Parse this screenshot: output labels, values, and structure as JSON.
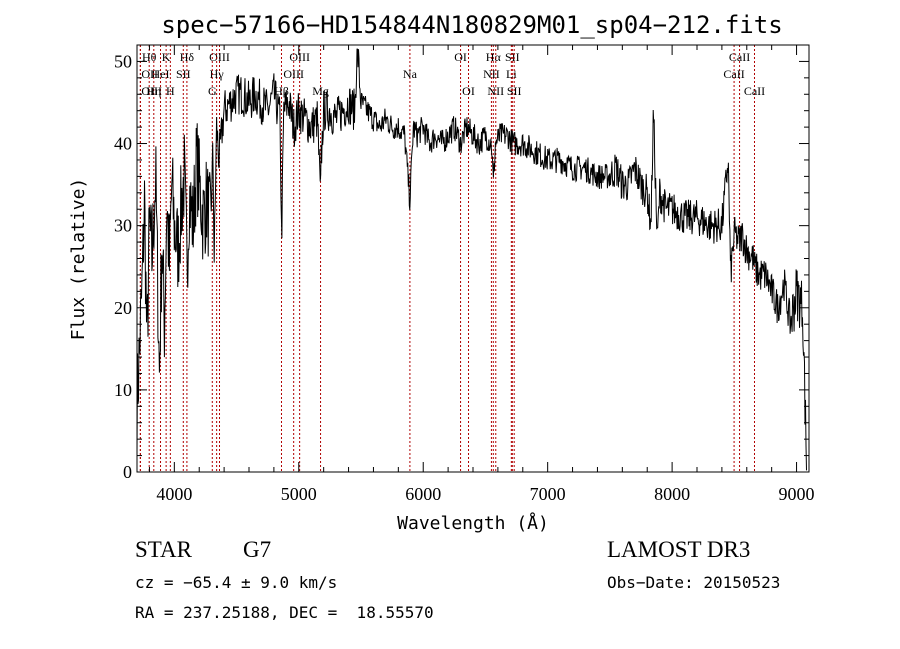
{
  "chart_data": {
    "type": "line",
    "title": "spec−57166−HD154844N180829M01_sp04−212.fits",
    "xlabel": "Wavelength (Å)",
    "ylabel": "Flux (relative)",
    "xlim": [
      3700,
      9100
    ],
    "ylim": [
      0,
      52
    ],
    "xticks": [
      4000,
      5000,
      6000,
      7000,
      8000,
      9000
    ],
    "yticks": [
      0,
      10,
      20,
      30,
      40,
      50
    ],
    "grid": false,
    "series": [
      {
        "name": "flux",
        "x": [
          3700,
          3740,
          3760,
          3780,
          3800,
          3820,
          3850,
          3880,
          3900,
          3920,
          3940,
          3960,
          3980,
          4000,
          4030,
          4060,
          4080,
          4101,
          4120,
          4150,
          4180,
          4200,
          4230,
          4260,
          4290,
          4310,
          4320,
          4340,
          4360,
          4400,
          4450,
          4500,
          4550,
          4600,
          4650,
          4700,
          4750,
          4800,
          4850,
          4861,
          4880,
          4920,
          4960,
          5000,
          5050,
          5100,
          5150,
          5175,
          5180,
          5200,
          5250,
          5300,
          5350,
          5400,
          5450,
          5470,
          5500,
          5550,
          5600,
          5650,
          5700,
          5750,
          5800,
          5850,
          5893,
          5920,
          5950,
          6000,
          6050,
          6100,
          6150,
          6200,
          6250,
          6300,
          6350,
          6400,
          6450,
          6500,
          6550,
          6563,
          6580,
          6620,
          6680,
          6720,
          6800,
          6900,
          7000,
          7100,
          7200,
          7300,
          7400,
          7500,
          7550,
          7600,
          7650,
          7700,
          7750,
          7800,
          7830,
          7850,
          7880,
          7900,
          7950,
          8000,
          8100,
          8200,
          8300,
          8400,
          8450,
          8470,
          8500,
          8542,
          8560,
          8600,
          8650,
          8662,
          8700,
          8750,
          8800,
          8850,
          8900,
          8950,
          9000,
          9050,
          9080
        ],
        "y": [
          8,
          22,
          33,
          15,
          30,
          26,
          36,
          12,
          28,
          18,
          33,
          25,
          35,
          30,
          27,
          33,
          36,
          25,
          34,
          30,
          38,
          35,
          31,
          33,
          30,
          39,
          26,
          42,
          38,
          44,
          45,
          46,
          46,
          45,
          46,
          45,
          44,
          46,
          43,
          28,
          44,
          45,
          42,
          44,
          43,
          42,
          43,
          33,
          38,
          44,
          44,
          43,
          44,
          45,
          44,
          52,
          45,
          44,
          43,
          42,
          43,
          42,
          42,
          41,
          33,
          42,
          41,
          42,
          40,
          41,
          40,
          41,
          42,
          40,
          42,
          41,
          40,
          41,
          40,
          35,
          40,
          41,
          41,
          40,
          40,
          39,
          38,
          38,
          37,
          37,
          36,
          36,
          37,
          35,
          35,
          37,
          35,
          34,
          30,
          44,
          28,
          34,
          32,
          32,
          31,
          31,
          30,
          30,
          38,
          24,
          29,
          28,
          29,
          27,
          26,
          25,
          24,
          24,
          22,
          20,
          23,
          18,
          22,
          20,
          1
        ]
      }
    ],
    "line_markers": [
      {
        "label": "Hθ",
        "wavelength": 3798,
        "row": 1,
        "align": "middle"
      },
      {
        "label": "K",
        "wavelength": 3934,
        "row": 1,
        "align": "middle"
      },
      {
        "label": "Hδ",
        "wavelength": 4101,
        "row": 1,
        "align": "middle"
      },
      {
        "label": "OIII",
        "wavelength": 4363,
        "row": 1,
        "align": "middle"
      },
      {
        "label": "OIII",
        "wavelength": 5007,
        "row": 1,
        "align": "middle"
      },
      {
        "label": "OI",
        "wavelength": 6300,
        "row": 1,
        "align": "middle"
      },
      {
        "label": "Hα",
        "wavelength": 6563,
        "row": 1,
        "align": "middle"
      },
      {
        "label": "SII",
        "wavelength": 6716,
        "row": 1,
        "align": "middle"
      },
      {
        "label": "CaII",
        "wavelength": 8542,
        "row": 1,
        "align": "middle"
      },
      {
        "label": "OII",
        "wavelength": 3727,
        "row": 2,
        "align": "start"
      },
      {
        "label": "HeI",
        "wavelength": 3889,
        "row": 2,
        "align": "middle"
      },
      {
        "label": "SII",
        "wavelength": 4072,
        "row": 2,
        "align": "middle"
      },
      {
        "label": "Hγ",
        "wavelength": 4340,
        "row": 2,
        "align": "middle"
      },
      {
        "label": "OIII",
        "wavelength": 4959,
        "row": 2,
        "align": "middle"
      },
      {
        "label": "Na",
        "wavelength": 5893,
        "row": 2,
        "align": "middle"
      },
      {
        "label": "NII",
        "wavelength": 6548,
        "row": 2,
        "align": "middle"
      },
      {
        "label": "Li",
        "wavelength": 6708,
        "row": 2,
        "align": "middle"
      },
      {
        "label": "CaII",
        "wavelength": 8498,
        "row": 2,
        "align": "middle"
      },
      {
        "label": "OIII",
        "wavelength": 3727,
        "row": 3,
        "align": "start"
      },
      {
        "label": "Hη",
        "wavelength": 3835,
        "row": 3,
        "align": "middle"
      },
      {
        "label": "H",
        "wavelength": 3968,
        "row": 3,
        "align": "middle"
      },
      {
        "label": "G",
        "wavelength": 4305,
        "row": 3,
        "align": "middle"
      },
      {
        "label": "Hβ",
        "wavelength": 4861,
        "row": 3,
        "align": "middle"
      },
      {
        "label": "Mg",
        "wavelength": 5175,
        "row": 3,
        "align": "middle"
      },
      {
        "label": "OI",
        "wavelength": 6364,
        "row": 3,
        "align": "middle"
      },
      {
        "label": "NII",
        "wavelength": 6583,
        "row": 3,
        "align": "middle"
      },
      {
        "label": "SII",
        "wavelength": 6731,
        "row": 3,
        "align": "middle"
      },
      {
        "label": "CaII",
        "wavelength": 8662,
        "row": 3,
        "align": "middle"
      }
    ],
    "annotations": {
      "object_class": "STAR",
      "subclass": "G7",
      "survey": "LAMOST DR3",
      "redshift": "cz = −65.4 ± 9.0 km/s",
      "obs_date": "Obs−Date: 20150523",
      "coords": "RA = 237.25188, DEC =  18.55570"
    },
    "colors": {
      "spectrum": "#000000",
      "marker_line": "#b00000",
      "axis": "#000000"
    }
  }
}
